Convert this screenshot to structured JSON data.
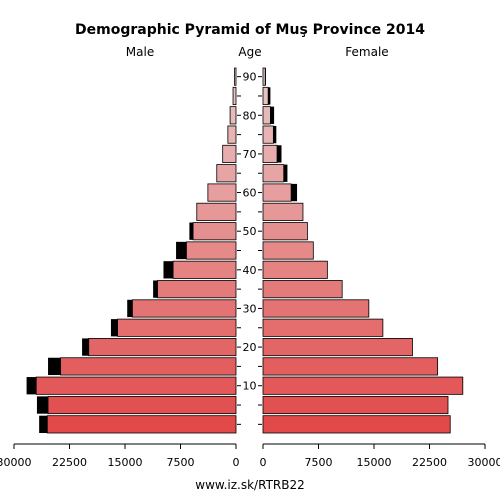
{
  "chart_data": {
    "type": "bar",
    "subtype": "population-pyramid",
    "title": "Demographic Pyramid of Muş Province 2014",
    "left_label": "Male",
    "center_label": "Age",
    "right_label": "Female",
    "footer": "www.iz.sk/RTRB22",
    "age_groups": [
      "0-4",
      "5-9",
      "10-14",
      "15-19",
      "20-24",
      "25-29",
      "30-34",
      "35-39",
      "40-44",
      "45-49",
      "50-54",
      "55-59",
      "60-64",
      "65-69",
      "70-74",
      "75-79",
      "80-84",
      "85-89",
      "90+"
    ],
    "age_tick_labels": [
      "10",
      "20",
      "30",
      "40",
      "50",
      "60",
      "70",
      "80",
      "90"
    ],
    "age_tick_groups": [
      2,
      4,
      6,
      8,
      10,
      12,
      14,
      16,
      18
    ],
    "male_ticks": [
      30000,
      22500,
      15000,
      7500,
      0
    ],
    "male_tick_labels": [
      "30000",
      "22500",
      "15000",
      "7500",
      "0"
    ],
    "female_ticks": [
      0,
      7500,
      15000,
      22500,
      30000
    ],
    "female_tick_labels": [
      "0",
      "7500",
      "15000",
      "22500",
      "30000"
    ],
    "xlim": [
      0,
      30000
    ],
    "series": [
      {
        "name": "Male",
        "values": [
          25500,
          25400,
          27000,
          23700,
          19900,
          16000,
          14000,
          10600,
          8500,
          6700,
          5800,
          5300,
          3800,
          2600,
          1800,
          1100,
          800,
          400,
          200
        ]
      },
      {
        "name": "Male excess",
        "values": [
          1100,
          1500,
          1300,
          1700,
          900,
          900,
          700,
          600,
          1300,
          1400,
          500,
          0,
          0,
          0,
          0,
          0,
          0,
          0,
          0
        ]
      },
      {
        "name": "Female",
        "values": [
          25300,
          25000,
          27000,
          23600,
          20200,
          16200,
          14300,
          10700,
          8700,
          6800,
          6000,
          5400,
          3800,
          2800,
          1900,
          1400,
          1000,
          700,
          300
        ]
      },
      {
        "name": "Female excess",
        "values": [
          0,
          0,
          0,
          0,
          0,
          0,
          0,
          0,
          0,
          0,
          0,
          0,
          800,
          500,
          600,
          400,
          500,
          300,
          100
        ]
      }
    ],
    "colors": {
      "youngest": "#e24a4a",
      "oldest": "#e8c8c8",
      "excess": "#000000",
      "outline": "#000000"
    },
    "grid": false
  }
}
